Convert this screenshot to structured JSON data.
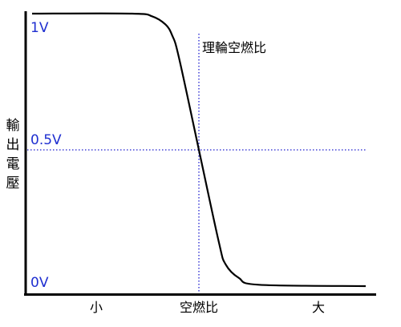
{
  "chart_data": {
    "type": "line",
    "ylabel": "輸出電壓",
    "y_ticks": [
      "1V",
      "0.5V",
      "0V"
    ],
    "x_categories": [
      "小",
      "空燃比",
      "大"
    ],
    "ylim": [
      0,
      1
    ],
    "xlim": [
      0,
      1
    ],
    "annotation": "理輪空燃比",
    "reference": {
      "x": 0.5,
      "y": 0.5
    },
    "series": [
      {
        "values": [
          [
            0.0,
            1.0
          ],
          [
            0.3,
            1.0
          ],
          [
            0.36,
            0.99
          ],
          [
            0.4,
            0.96
          ],
          [
            0.42,
            0.92
          ],
          [
            0.44,
            0.84
          ],
          [
            0.5,
            0.5
          ],
          [
            0.56,
            0.16
          ],
          [
            0.58,
            0.08
          ],
          [
            0.62,
            0.03
          ],
          [
            0.68,
            0.005
          ],
          [
            1.0,
            0.0
          ]
        ]
      }
    ]
  }
}
